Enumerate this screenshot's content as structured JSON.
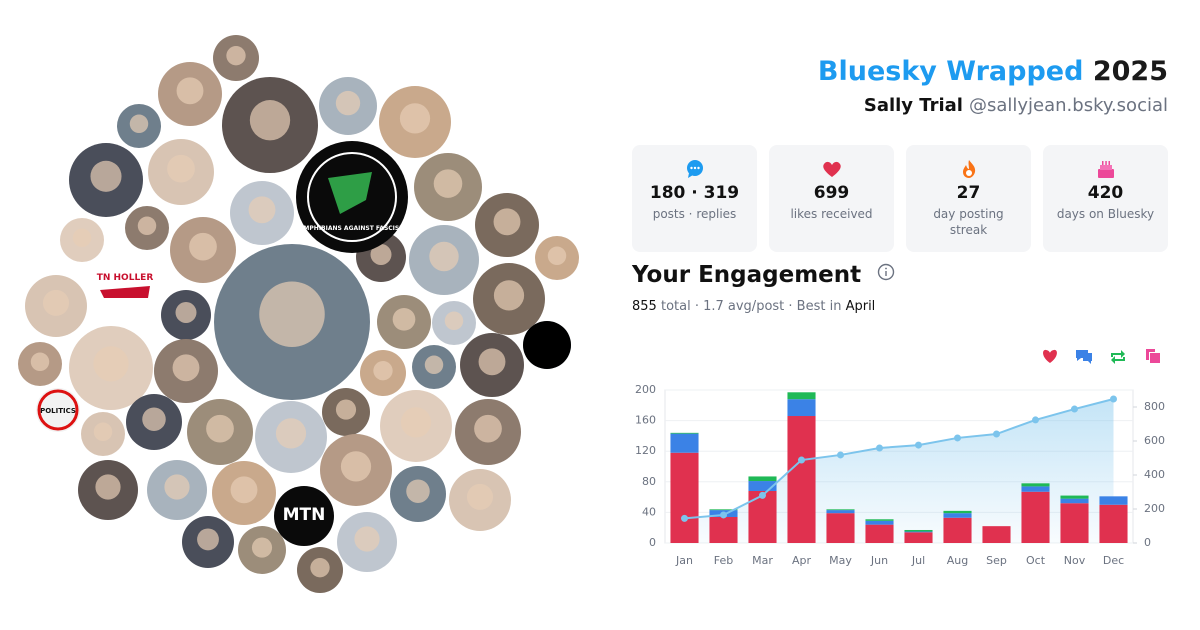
{
  "header": {
    "brand": "Bluesky Wrapped",
    "year": "2025",
    "name": "Sally Trial",
    "handle": "@sallyjean.bsky.social"
  },
  "stats": [
    {
      "value": "180 · 319",
      "label": "posts · replies"
    },
    {
      "value": "699",
      "label": "likes received"
    },
    {
      "value": "27",
      "label": "day posting streak"
    },
    {
      "value": "420",
      "label": "days on Bluesky"
    }
  ],
  "engagement": {
    "title": "Your Engagement",
    "total": 855,
    "detail": "total · 1.7 avg/post · Best in",
    "best": "April"
  },
  "avatars": {
    "labels": [
      "AMPHIBIANS AGAINST FASCISM",
      "TN HOLLER",
      "POLITICS",
      "MTN"
    ]
  },
  "chart_data": {
    "type": "bar",
    "stacked": true,
    "grid": true,
    "categories": [
      "Jan",
      "Feb",
      "Mar",
      "Apr",
      "May",
      "Jun",
      "Jul",
      "Aug",
      "Sep",
      "Oct",
      "Nov",
      "Dec"
    ],
    "ylim": [
      0,
      200
    ],
    "yticks": [
      0,
      40,
      80,
      120,
      160,
      200
    ],
    "y2lim": [
      0,
      900
    ],
    "y2ticks": [
      0,
      200,
      400,
      600,
      800
    ],
    "series": [
      {
        "color": "#e0314f",
        "values": [
          118,
          34,
          68,
          166,
          39,
          24,
          14,
          33,
          22,
          67,
          52,
          50
        ]
      },
      {
        "color": "#3b82e6",
        "values": [
          25,
          9,
          13,
          22,
          4,
          5,
          1,
          6,
          0,
          7,
          6,
          11
        ]
      },
      {
        "color": "#1fb956",
        "values": [
          1,
          1,
          6,
          9,
          1,
          2,
          2,
          3,
          0,
          4,
          4,
          0
        ]
      },
      {
        "color": "#ec4899",
        "values": [
          0,
          0,
          0,
          0,
          0,
          0,
          0,
          0,
          0,
          0,
          0,
          0
        ]
      },
      {
        "type": "line",
        "axis": "y2",
        "color": "#7cc4ec",
        "values": [
          145,
          165,
          280,
          488,
          518,
          559,
          576,
          618,
          641,
          724,
          788,
          847
        ]
      }
    ]
  }
}
